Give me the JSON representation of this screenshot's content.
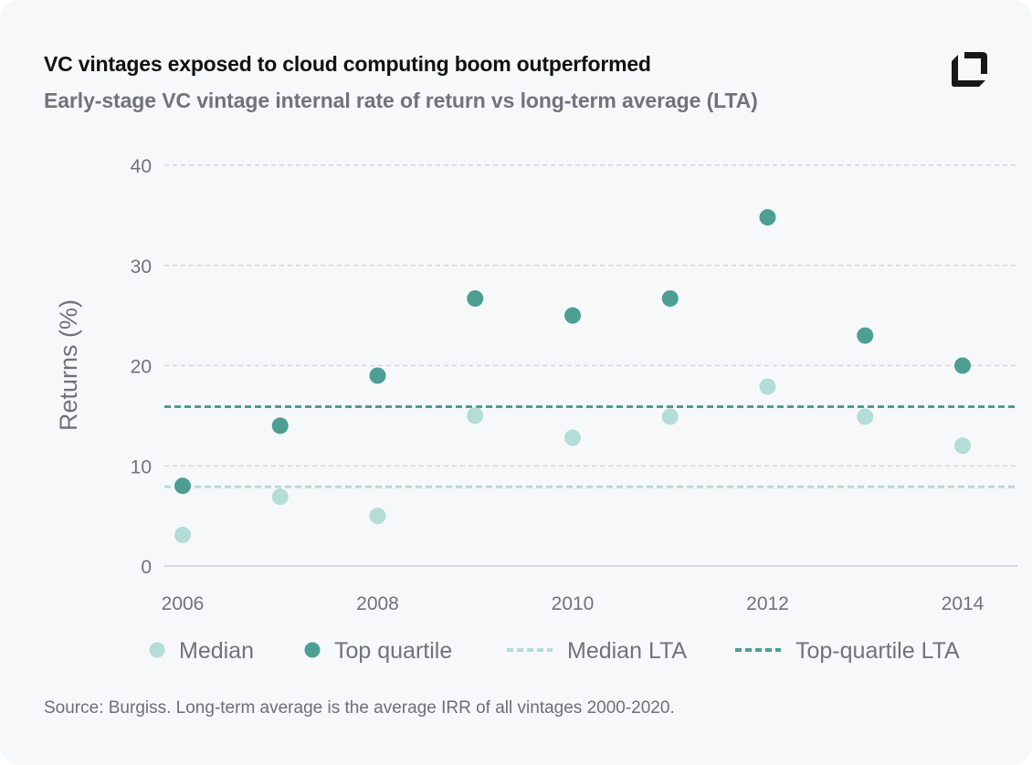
{
  "header": {
    "title": "VC vintages exposed to cloud computing boom outperformed",
    "subtitle": "Early-stage VC vintage internal rate of return vs long-term average (LTA)",
    "logo": "brand-logo"
  },
  "footer": {
    "source": "Source: Burgiss. Long-term average is the average IRR of all vintages 2000-2020."
  },
  "colors": {
    "median": "#b3ddd6",
    "top_quartile": "#4d9e93",
    "median_lta": "#b3ddd6",
    "top_quartile_lta": "#4d9e93",
    "grid": "#cfd2d6",
    "axis_text": "#6f737a"
  },
  "chart_data": {
    "type": "scatter",
    "ylabel": "Returns (%)",
    "xlabel": "",
    "ylim": [
      0,
      40
    ],
    "xlim": [
      2006,
      2014
    ],
    "yticks": [
      0,
      10,
      20,
      30,
      40
    ],
    "xticks": [
      2006,
      2008,
      2010,
      2012,
      2014
    ],
    "grid": "horizontal dashed",
    "legend_position": "bottom",
    "x": [
      2006,
      2007,
      2008,
      2009,
      2010,
      2011,
      2012,
      2013,
      2014
    ],
    "series": [
      {
        "name": "Median",
        "kind": "points",
        "values": [
          3.1,
          6.9,
          5.0,
          15.0,
          12.8,
          14.9,
          17.9,
          14.9,
          12.0
        ]
      },
      {
        "name": "Top quartile",
        "kind": "points",
        "values": [
          8.0,
          14.0,
          19.0,
          26.7,
          25.0,
          26.7,
          34.8,
          23.0,
          20.0
        ]
      },
      {
        "name": "Median LTA",
        "kind": "dashed-line",
        "value": 7.9
      },
      {
        "name": "Top-quartile LTA",
        "kind": "dashed-line",
        "value": 15.9
      }
    ]
  }
}
